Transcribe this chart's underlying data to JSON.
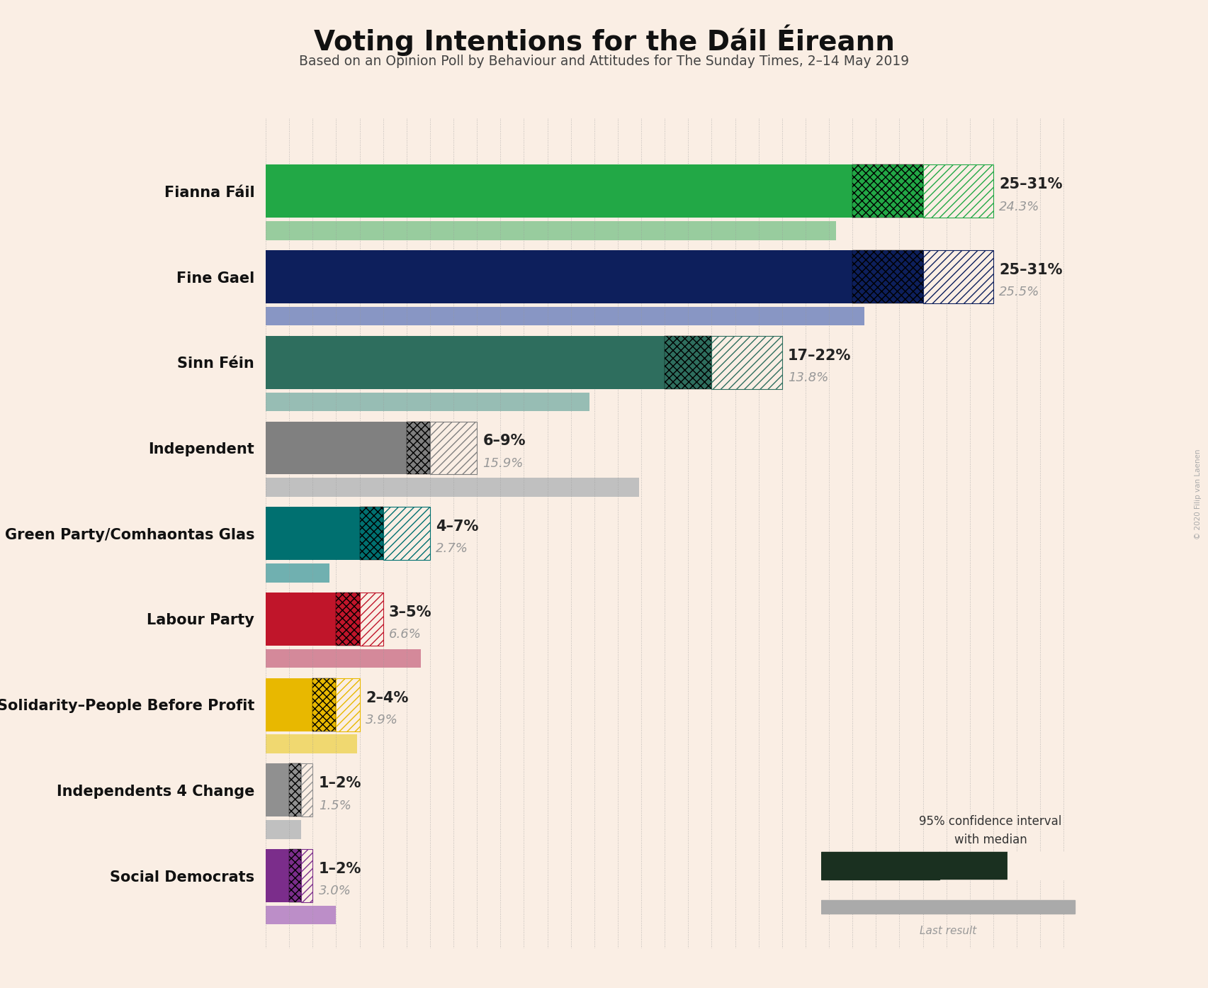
{
  "title": "Voting Intentions for the Dáil Éireann",
  "subtitle": "Based on an Opinion Poll by Behaviour and Attitudes for The Sunday Times, 2–14 May 2019",
  "background_color": "#faeee4",
  "parties": [
    {
      "name": "Fianna Fáil",
      "ci_low": 25,
      "ci_high": 31,
      "median": 28,
      "last_result": 24.3,
      "color": "#22a846",
      "color_light": "#98cc9e",
      "label": "25–31%",
      "last_label": "24.3%"
    },
    {
      "name": "Fine Gael",
      "ci_low": 25,
      "ci_high": 31,
      "median": 28,
      "last_result": 25.5,
      "color": "#0d1f5c",
      "color_light": "#8896c4",
      "label": "25–31%",
      "last_label": "25.5%"
    },
    {
      "name": "Sinn Féin",
      "ci_low": 17,
      "ci_high": 22,
      "median": 19,
      "last_result": 13.8,
      "color": "#2e6e5e",
      "color_light": "#97bdb4",
      "label": "17–22%",
      "last_label": "13.8%"
    },
    {
      "name": "Independent",
      "ci_low": 6,
      "ci_high": 9,
      "median": 7,
      "last_result": 15.9,
      "color": "#808080",
      "color_light": "#c0c0c0",
      "label": "6–9%",
      "last_label": "15.9%"
    },
    {
      "name": "Green Party/Comhaontas Glas",
      "ci_low": 4,
      "ci_high": 7,
      "median": 5,
      "last_result": 2.7,
      "color": "#007070",
      "color_light": "#70b0b0",
      "label": "4–7%",
      "last_label": "2.7%"
    },
    {
      "name": "Labour Party",
      "ci_low": 3,
      "ci_high": 5,
      "median": 4,
      "last_result": 6.6,
      "color": "#c0152a",
      "color_light": "#d4899a",
      "label": "3–5%",
      "last_label": "6.6%"
    },
    {
      "name": "Solidarity–People Before Profit",
      "ci_low": 2,
      "ci_high": 4,
      "median": 3,
      "last_result": 3.9,
      "color": "#e8b800",
      "color_light": "#f0d870",
      "label": "2–4%",
      "last_label": "3.9%"
    },
    {
      "name": "Independents 4 Change",
      "ci_low": 1,
      "ci_high": 2,
      "median": 1.5,
      "last_result": 1.5,
      "color": "#909090",
      "color_light": "#c0c0c0",
      "label": "1–2%",
      "last_label": "1.5%"
    },
    {
      "name": "Social Democrats",
      "ci_low": 1,
      "ci_high": 2,
      "median": 1.5,
      "last_result": 3.0,
      "color": "#7b2d8b",
      "color_light": "#bc8ec8",
      "label": "1–2%",
      "last_label": "3.0%"
    }
  ],
  "xlim": [
    0,
    35
  ],
  "bar_height": 0.62,
  "last_bar_height": 0.22,
  "watermark": "© 2020 Filip van Laenen",
  "legend_color": "#1a3020"
}
